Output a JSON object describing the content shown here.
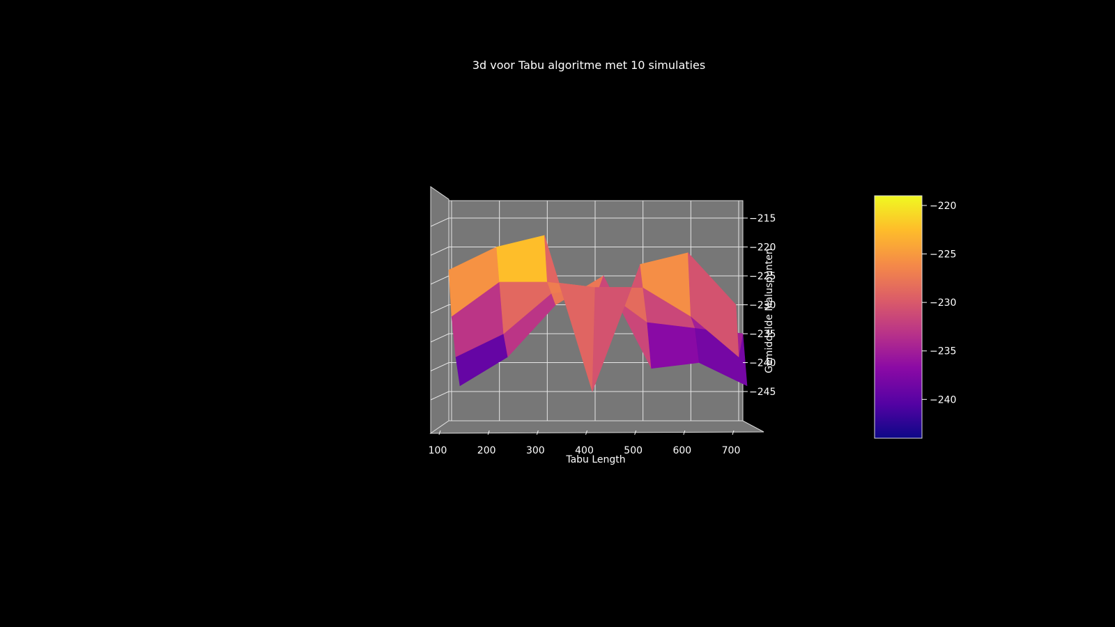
{
  "chart_data": {
    "type": "surface3d",
    "title": "3d  voor Tabu algoritme met 10 simulaties",
    "xlabel": "Tabu Length",
    "ylabel": "",
    "zlabel": "Gemiddelde Maluspunten",
    "x_ticks": [
      100,
      200,
      300,
      400,
      500,
      600,
      700
    ],
    "z_ticks": [
      -215,
      -220,
      -225,
      -230,
      -235,
      -240,
      -245
    ],
    "colorbar": {
      "colormap": "plasma",
      "range": [
        -244,
        -219
      ],
      "ticks": [
        -220,
        -225,
        -230,
        -235,
        -240
      ]
    },
    "x": [
      100,
      200,
      300,
      400,
      500,
      600,
      700
    ],
    "rows": [
      {
        "values": [
          -224,
          -220,
          -218,
          -245,
          -223,
          -221,
          -230
        ]
      },
      {
        "values": [
          -232,
          -226,
          -226,
          -227,
          -227,
          -232,
          -239
        ]
      },
      {
        "values": [
          -239,
          -235,
          -228,
          -227,
          -233,
          -234,
          -235
        ]
      },
      {
        "values": [
          -244,
          -239,
          -230,
          -225,
          -241,
          -240,
          -244
        ]
      }
    ],
    "background": "#000000",
    "pane_color": "#7a7a7a",
    "grid": true
  }
}
